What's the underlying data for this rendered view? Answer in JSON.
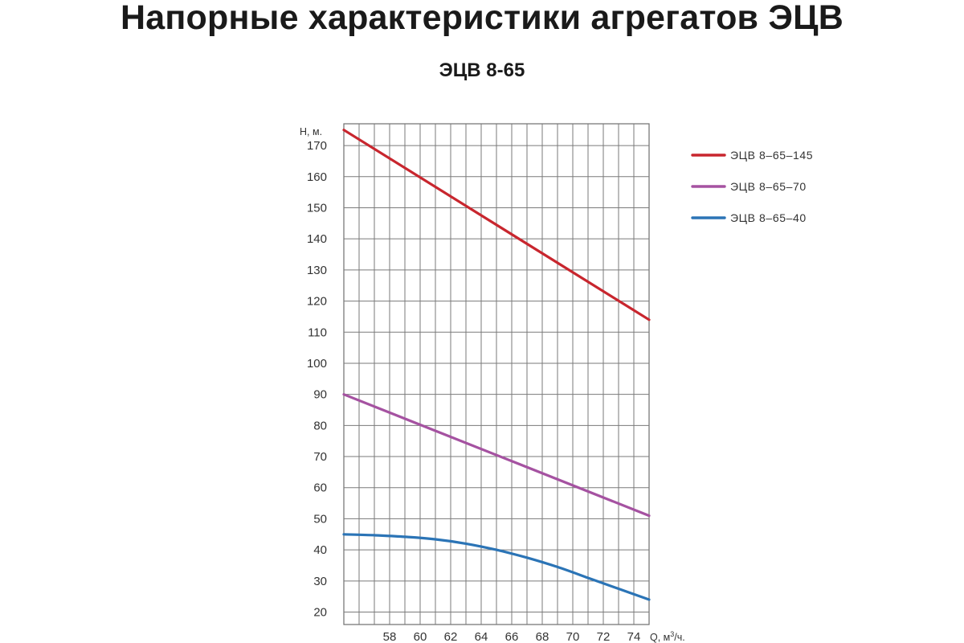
{
  "page": {
    "title": "Напорные характеристики агрегатов ЭЦВ",
    "subtitle": "ЭЦВ 8-65"
  },
  "chart_data": {
    "type": "line",
    "title": "ЭЦВ 8-65",
    "ylabel": "Н, м.",
    "xlabel_prefix": "Q, м",
    "xlabel_sup": "3",
    "xlabel_suffix": "/ч.",
    "xlim": [
      55,
      75
    ],
    "ylim": [
      16,
      177
    ],
    "x_ticks": [
      58,
      60,
      62,
      64,
      66,
      68,
      70,
      72,
      74
    ],
    "y_ticks": [
      20,
      30,
      40,
      50,
      60,
      70,
      80,
      90,
      100,
      110,
      120,
      130,
      140,
      150,
      160,
      170
    ],
    "x_grid_step": 1,
    "y_grid": [
      20,
      30,
      40,
      50,
      60,
      70,
      80,
      90,
      100,
      110,
      120,
      130,
      140,
      150,
      160,
      170
    ],
    "grid": true,
    "legend_position": "right",
    "series": [
      {
        "name": "ЭЦВ 8–65–145",
        "color": "#c8262e",
        "x": [
          55,
          75
        ],
        "y": [
          175,
          114
        ]
      },
      {
        "name": "ЭЦВ 8–65–70",
        "color": "#a552a1",
        "x": [
          55,
          75
        ],
        "y": [
          90,
          51
        ]
      },
      {
        "name": "ЭЦВ 8–65–40",
        "color": "#2b74b6",
        "x": [
          55,
          57,
          59,
          61,
          63,
          65,
          67,
          69,
          71,
          73,
          75
        ],
        "y": [
          45,
          44.7,
          44.2,
          43.4,
          42,
          40,
          37.5,
          34.5,
          31,
          27.5,
          24
        ]
      }
    ]
  }
}
